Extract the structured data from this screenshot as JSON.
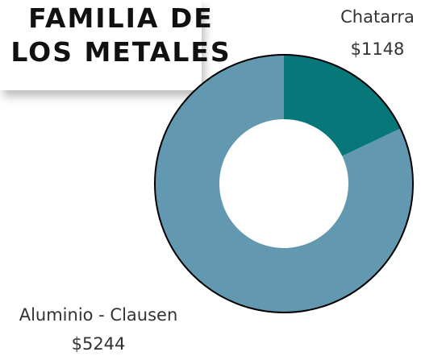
{
  "chart_data": {
    "type": "donut",
    "title": "FAMILIA DE LOS METALES",
    "categories": [
      "Chatarra",
      "Aluminio - Clausen"
    ],
    "values": [
      1148,
      5244
    ],
    "value_labels": [
      "$1148",
      "$5244"
    ],
    "colors": [
      "#08777a",
      "#6298b0"
    ]
  }
}
